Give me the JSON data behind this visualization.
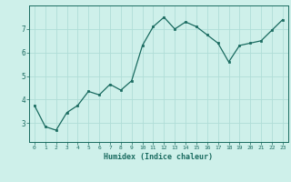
{
  "x": [
    0,
    1,
    2,
    3,
    4,
    5,
    6,
    7,
    8,
    9,
    10,
    11,
    12,
    13,
    14,
    15,
    16,
    17,
    18,
    19,
    20,
    21,
    22,
    23
  ],
  "y": [
    3.75,
    2.85,
    2.7,
    3.45,
    3.75,
    4.35,
    4.2,
    4.65,
    4.4,
    4.8,
    6.3,
    7.1,
    7.5,
    7.0,
    7.3,
    7.1,
    6.75,
    6.4,
    5.6,
    6.3,
    6.4,
    6.5,
    6.95,
    7.4
  ],
  "xlabel": "Humidex (Indice chaleur)",
  "bg_color": "#cef0ea",
  "line_color": "#1a6b60",
  "marker_color": "#1a6b60",
  "grid_color": "#b0ddd7",
  "axis_color": "#1a6b60",
  "tick_color": "#1a6b60",
  "xlabel_color": "#1a6b60",
  "xlim": [
    -0.5,
    23.5
  ],
  "ylim": [
    2.2,
    8.0
  ],
  "yticks": [
    3,
    4,
    5,
    6,
    7
  ],
  "xticks": [
    0,
    1,
    2,
    3,
    4,
    5,
    6,
    7,
    8,
    9,
    10,
    11,
    12,
    13,
    14,
    15,
    16,
    17,
    18,
    19,
    20,
    21,
    22,
    23
  ]
}
